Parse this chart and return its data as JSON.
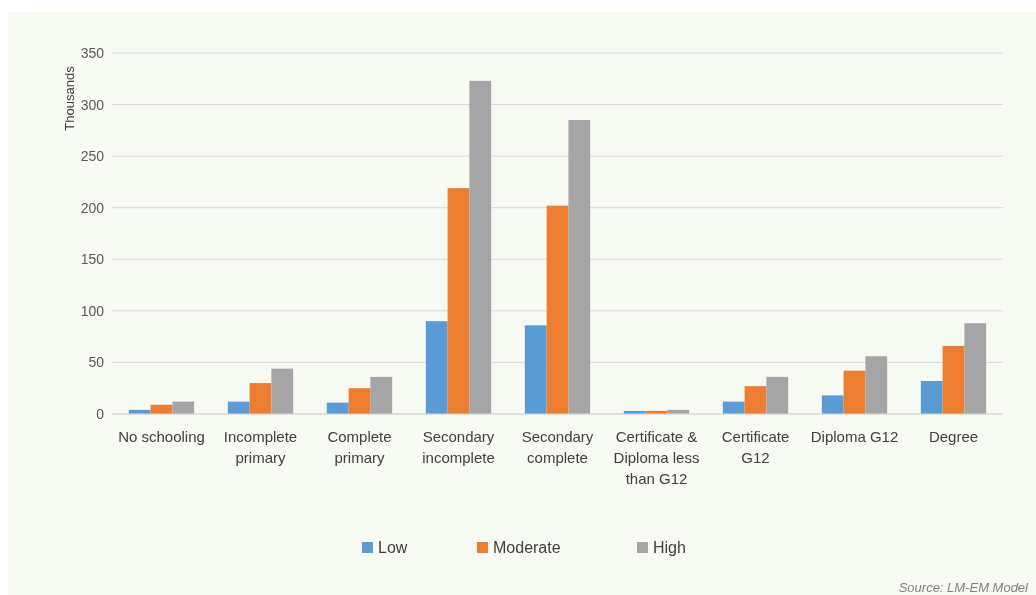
{
  "chart_data": {
    "type": "bar",
    "ylabel": "Thousands",
    "categories": [
      "No schooling",
      "Incomplete primary",
      "Complete primary",
      "Secondary incomplete",
      "Secondary complete",
      "Certificate & Diploma less than G12",
      "Certificate G12",
      "Diploma G12",
      "Degree"
    ],
    "series": [
      {
        "name": "Low",
        "color": "#5b9bd5",
        "values": [
          4,
          12,
          11,
          90,
          86,
          3,
          12,
          18,
          32
        ]
      },
      {
        "name": "Moderate",
        "color": "#ed7d31",
        "values": [
          9,
          30,
          25,
          219,
          202,
          3,
          27,
          42,
          66
        ]
      },
      {
        "name": "High",
        "color": "#a5a5a5",
        "values": [
          12,
          44,
          36,
          323,
          285,
          4,
          36,
          56,
          88
        ]
      }
    ],
    "ylim": [
      0,
      350
    ],
    "yticks": [
      0,
      50,
      100,
      150,
      200,
      250,
      300,
      350
    ],
    "grid": "y",
    "legend": "bottom",
    "annotations": [
      "Source: LM-EM Model"
    ]
  }
}
